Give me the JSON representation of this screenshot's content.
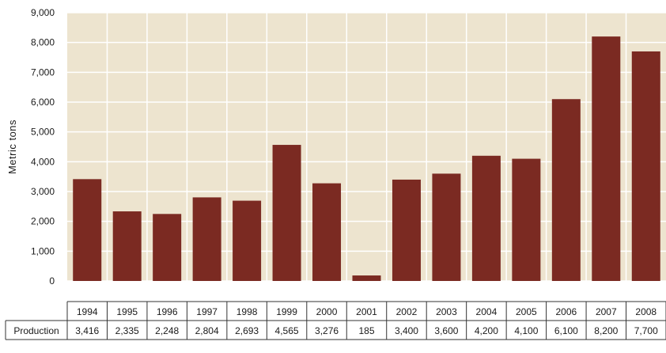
{
  "chart_data": {
    "type": "bar",
    "ylabel": "Metric tons",
    "xlabel": "",
    "title": "",
    "categories": [
      "1994",
      "1995",
      "1996",
      "1997",
      "1998",
      "1999",
      "2000",
      "2001",
      "2002",
      "2003",
      "2004",
      "2005",
      "2006",
      "2007",
      "2008"
    ],
    "values": [
      3416,
      2335,
      2248,
      2804,
      2693,
      4565,
      3276,
      185,
      3400,
      3600,
      4200,
      4100,
      6100,
      8200,
      7700
    ],
    "value_labels": [
      "3,416",
      "2,335",
      "2,248",
      "2,804",
      "2,693",
      "4,565",
      "3,276",
      "185",
      "3,400",
      "3,600",
      "4,200",
      "4,100",
      "6,100",
      "8,200",
      "7,700"
    ],
    "ylim": [
      0,
      9000
    ],
    "yticks": [
      0,
      1000,
      2000,
      3000,
      4000,
      5000,
      6000,
      7000,
      8000,
      9000
    ],
    "ytick_labels": [
      "0",
      "1,000",
      "2,000",
      "3,000",
      "4,000",
      "5,000",
      "6,000",
      "7,000",
      "8,000",
      "9,000"
    ],
    "grid": true,
    "legend": "none",
    "table_row_label": "Production",
    "colors": {
      "bar": "#7b2a22",
      "plot_background": "#ede4cf",
      "grid": "#ffffff"
    }
  }
}
